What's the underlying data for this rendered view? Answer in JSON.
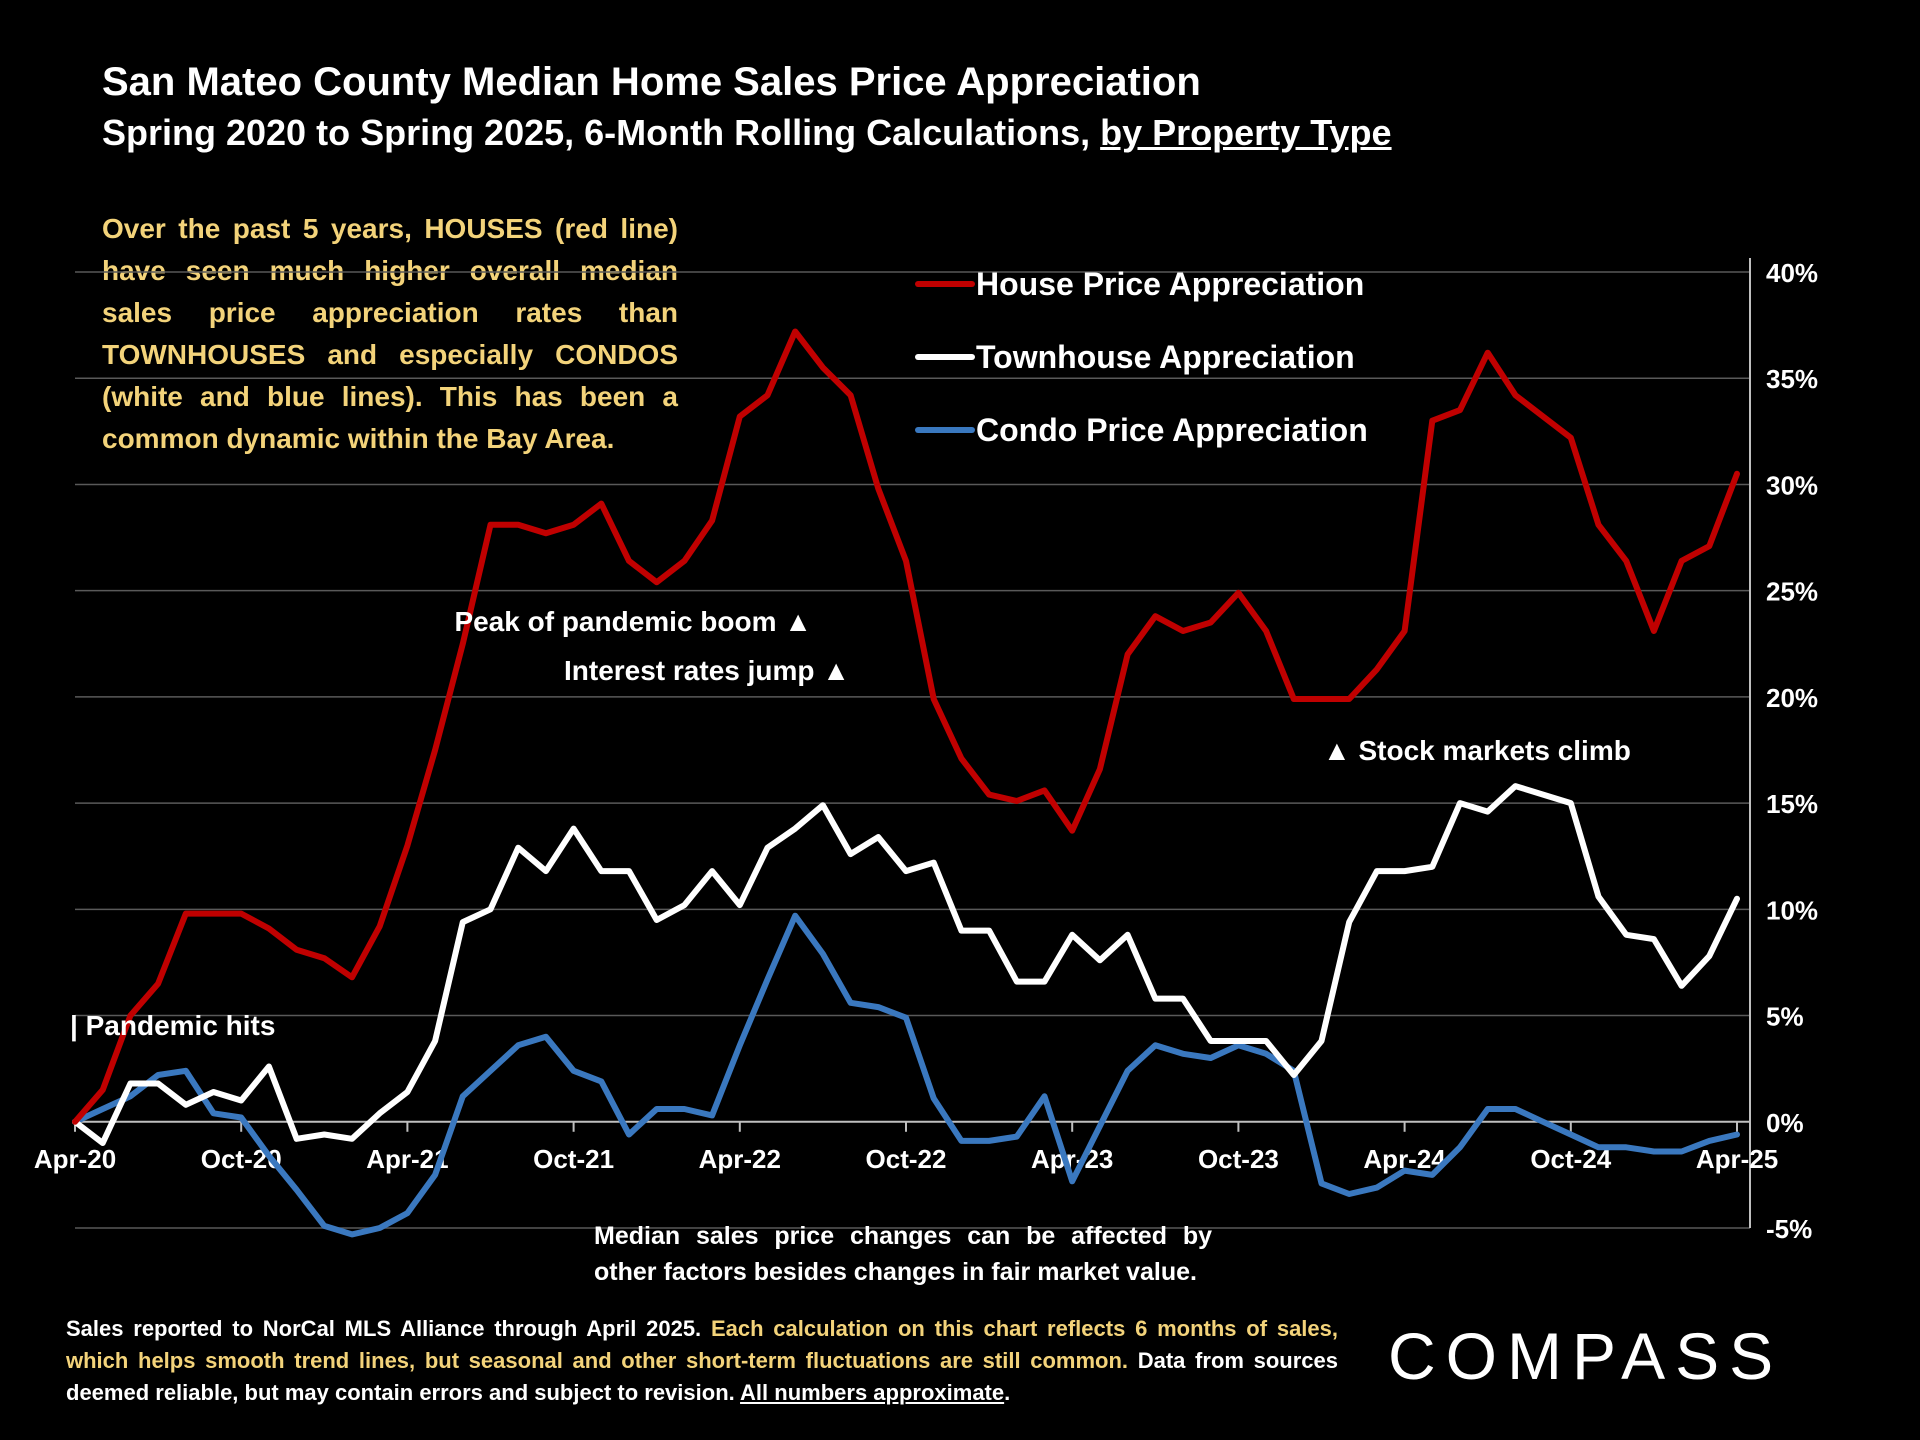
{
  "header": {
    "title": "San Mateo County Median Home Sales Price Appreciation",
    "subtitle_main": "Spring 2020 to Spring 2025, 6-Month Rolling Calculations, ",
    "subtitle_underlined": "by Property Type"
  },
  "insight_text": "Over the past 5 years, HOUSES (red line) have seen much higher overall median sales price appreciation rates than TOWNHOUSES and especially CONDOS (white and blue lines). This has been a common dynamic within the Bay Area.",
  "caveat_text": "Median sales price changes can be affected by other factors besides changes in fair market value.",
  "footer": {
    "part1": "Sales reported to NorCal MLS Alliance through April 2025. ",
    "part2": "Each calculation on this chart reflects 6 months of sales, which helps smooth trend lines, but seasonal and other short-term fluctuations are still common.",
    "part3": " Data from sources deemed reliable, but may contain errors and subject to revision. ",
    "part4": "All numbers approximate",
    "part5": "."
  },
  "logo_text": "COMPASS",
  "colors": {
    "house": "#c00000",
    "townhouse": "#ffffff",
    "condo": "#3a78bf",
    "insight": "#f3d37a",
    "grid": "#595959"
  },
  "chart_data": {
    "type": "line",
    "title": "San Mateo County Median Home Sales Price Appreciation",
    "x_ticks": [
      "Apr-20",
      "Oct-20",
      "Apr-21",
      "Oct-21",
      "Apr-22",
      "Oct-22",
      "Apr-23",
      "Oct-23",
      "Apr-24",
      "Oct-24",
      "Apr-25"
    ],
    "x_start": "Apr-20",
    "x_end": "Apr-25",
    "y_ticks": [
      "-5%",
      "0%",
      "5%",
      "10%",
      "15%",
      "20%",
      "25%",
      "30%",
      "35%",
      "40%"
    ],
    "ylim": [
      -5,
      40
    ],
    "y_unit": "%",
    "grid": true,
    "legend_position": "top-center",
    "series": [
      {
        "name": "House Price Appreciation",
        "color": "#c00000",
        "values": [
          0,
          1.5,
          5,
          6.5,
          9.8,
          9.8,
          9.8,
          9.1,
          8.1,
          7.7,
          6.8,
          9.2,
          13,
          17.5,
          22.5,
          28.1,
          28.1,
          27.7,
          28.1,
          29.1,
          26.4,
          25.4,
          26.4,
          28.3,
          33.2,
          34.2,
          37.2,
          35.5,
          34.2,
          29.8,
          26.4,
          19.9,
          17.1,
          15.4,
          15.1,
          15.6,
          13.7,
          16.6,
          22,
          23.8,
          23.1,
          23.5,
          24.9,
          23.1,
          19.9,
          19.9,
          19.9,
          21.3,
          23.1,
          33,
          33.5,
          36.2,
          34.2,
          33.2,
          32.2,
          28.1,
          26.4,
          23.1,
          26.4,
          27.1,
          30.5
        ]
      },
      {
        "name": "Townhouse  Appreciation",
        "color": "#ffffff",
        "values": [
          0,
          -1.0,
          1.8,
          1.8,
          0.8,
          1.4,
          1.0,
          2.6,
          -0.8,
          -0.6,
          -0.8,
          0.4,
          1.4,
          3.8,
          9.4,
          10,
          12.9,
          11.8,
          13.8,
          11.8,
          11.8,
          9.5,
          10.2,
          11.8,
          10.2,
          12.9,
          13.8,
          14.9,
          12.6,
          13.4,
          11.8,
          12.2,
          9,
          9,
          6.6,
          6.6,
          8.8,
          7.6,
          8.8,
          5.8,
          5.8,
          3.8,
          3.8,
          3.8,
          2.2,
          3.8,
          9.4,
          11.8,
          11.8,
          12,
          15,
          14.6,
          15.8,
          15.4,
          15,
          10.6,
          8.8,
          8.6,
          6.4,
          7.8,
          10.5
        ]
      },
      {
        "name": "Condo Price Appreciation",
        "color": "#3a78bf",
        "values": [
          0,
          0.6,
          1.2,
          2.2,
          2.4,
          0.4,
          0.2,
          -1.6,
          -3.2,
          -4.9,
          -5.3,
          -5.0,
          -4.3,
          -2.5,
          1.2,
          2.4,
          3.6,
          4.0,
          2.4,
          1.9,
          -0.6,
          0.6,
          0.6,
          0.3,
          3.6,
          6.7,
          9.7,
          7.9,
          5.6,
          5.4,
          4.9,
          1.1,
          -0.9,
          -0.9,
          -0.7,
          1.2,
          -2.8,
          -0.2,
          2.4,
          3.6,
          3.2,
          3.0,
          3.6,
          3.2,
          2.4,
          -2.9,
          -3.4,
          -3.1,
          -2.3,
          -2.5,
          -1.2,
          0.6,
          0.6,
          0.0,
          -0.6,
          -1.2,
          -1.2,
          -1.4,
          -1.4,
          -0.9,
          -0.6
        ]
      }
    ],
    "annotations": [
      {
        "label": "Pandemic hits",
        "marker": "|"
      },
      {
        "label": "Peak of pandemic boom",
        "marker": "▲"
      },
      {
        "label": "Interest rates jump",
        "marker": "▲"
      },
      {
        "label": "Stock markets climb",
        "marker": "▲"
      }
    ]
  }
}
